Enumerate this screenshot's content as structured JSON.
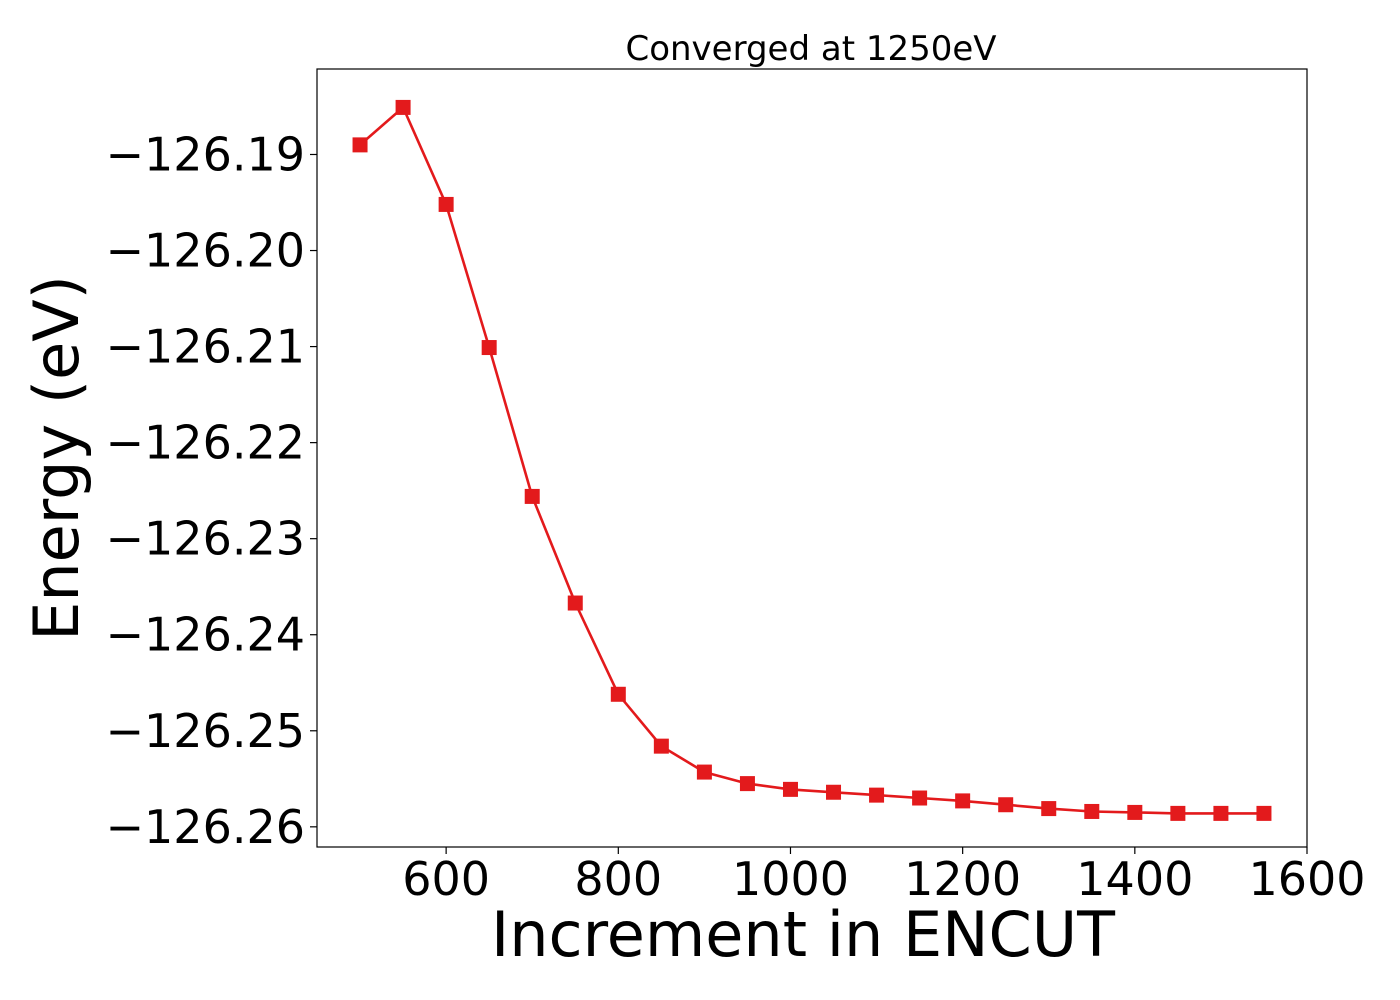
{
  "chart_data": {
    "type": "line",
    "title": "Converged at 1250eV",
    "xlabel": "Increment in ENCUT",
    "ylabel": "Energy (eV)",
    "xlim": [
      450,
      1600
    ],
    "ylim": [
      -126.2621,
      -126.1811
    ],
    "xticks": [
      600,
      800,
      1000,
      1200,
      1400,
      1600
    ],
    "xtick_labels": [
      "600",
      "800",
      "1000",
      "1200",
      "1400",
      "1600"
    ],
    "yticks": [
      -126.19,
      -126.2,
      -126.21,
      -126.22,
      -126.23,
      -126.24,
      -126.25,
      -126.26
    ],
    "ytick_labels": [
      "−126.19",
      "−126.20",
      "−126.21",
      "−126.22",
      "−126.23",
      "−126.24",
      "−126.25",
      "−126.26"
    ],
    "grid": false,
    "series": [
      {
        "color": "#e31a1c",
        "marker": "square",
        "x": [
          500,
          550,
          600,
          650,
          700,
          750,
          800,
          850,
          900,
          950,
          1000,
          1050,
          1100,
          1150,
          1200,
          1250,
          1300,
          1350,
          1400,
          1450,
          1500,
          1550
        ],
        "y": [
          -126.189,
          -126.1851,
          -126.1952,
          -126.2101,
          -126.2256,
          -126.2367,
          -126.2462,
          -126.2516,
          -126.2543,
          -126.2555,
          -126.2561,
          -126.2564,
          -126.2567,
          -126.257,
          -126.2573,
          -126.2577,
          -126.2581,
          -126.2584,
          -126.2585,
          -126.2586,
          -126.2586,
          -126.2586
        ]
      }
    ]
  }
}
